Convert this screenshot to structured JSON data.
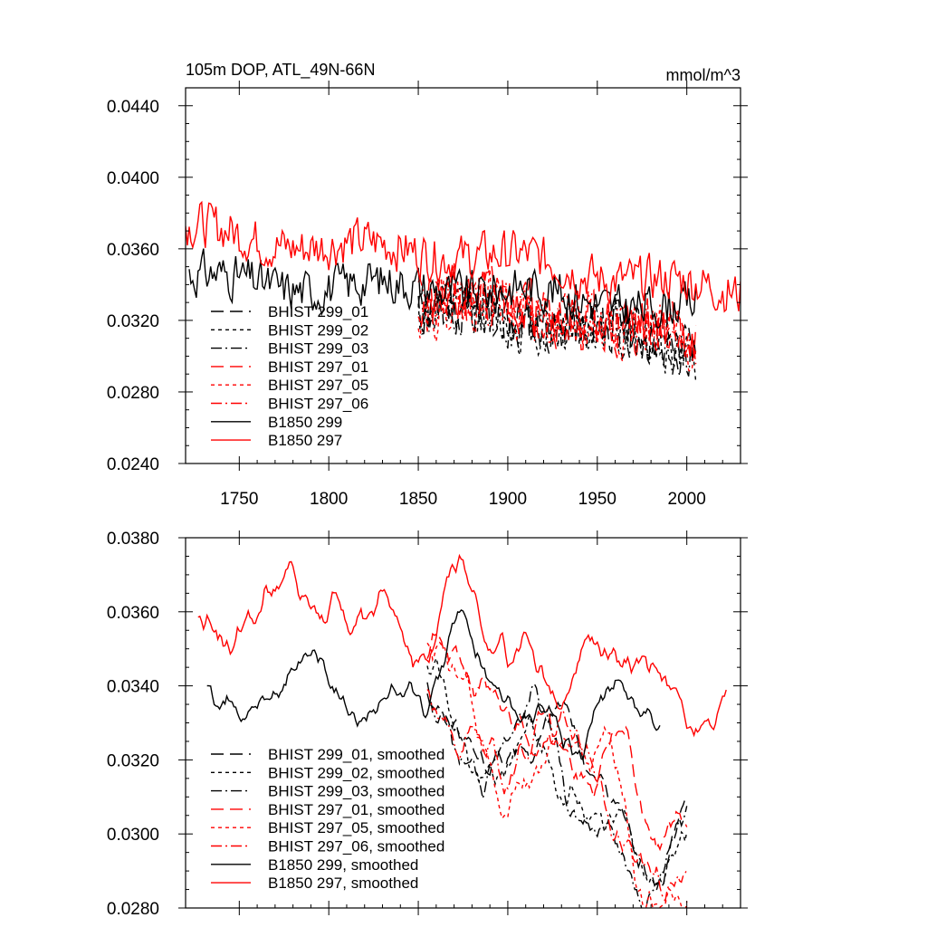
{
  "chart_data": [
    {
      "type": "line",
      "title_left": "105m DOP, ATL_49N-66N",
      "title_right": "mmol/m^3",
      "xlim": [
        1720,
        2030
      ],
      "ylim": [
        0.024,
        0.045
      ],
      "xticks": [
        1750,
        1800,
        1850,
        1900,
        1950,
        2000
      ],
      "xtick_labels": [
        "1750",
        "1800",
        "1850",
        "1900",
        "1950",
        "2000"
      ],
      "yticks": [
        0.024,
        0.028,
        0.032,
        0.036,
        0.04,
        0.044
      ],
      "ytick_labels": [
        "0.0240",
        "0.0280",
        "0.0320",
        "0.0360",
        "0.0400",
        "0.0440"
      ],
      "legend": [
        "BHIST 299_01",
        "BHIST 299_02",
        "BHIST 299_03",
        "BHIST 297_01",
        "BHIST 297_05",
        "BHIST 297_06",
        "B1850 299",
        "B1850 297"
      ],
      "series": [
        {
          "name": "BHIST 299_01",
          "color": "#000000",
          "dash": "long",
          "x_range": [
            1850,
            2005
          ],
          "mean": 0.0325,
          "slope": -1e-05,
          "noise": 0.0024,
          "seed": 11,
          "smooth": 0
        },
        {
          "name": "BHIST 299_02",
          "color": "#000000",
          "dash": "short",
          "x_range": [
            1850,
            2005
          ],
          "mean": 0.0323,
          "slope": -1.1e-05,
          "noise": 0.0024,
          "seed": 12,
          "smooth": 0
        },
        {
          "name": "BHIST 299_03",
          "color": "#000000",
          "dash": "dashdot",
          "x_range": [
            1850,
            2005
          ],
          "mean": 0.0324,
          "slope": -1e-05,
          "noise": 0.0024,
          "seed": 13,
          "smooth": 0
        },
        {
          "name": "BHIST 297_01",
          "color": "#ff0000",
          "dash": "long",
          "x_range": [
            1850,
            2005
          ],
          "mean": 0.0332,
          "slope": -1.2e-05,
          "noise": 0.0026,
          "seed": 21,
          "smooth": 0
        },
        {
          "name": "BHIST 297_05",
          "color": "#ff0000",
          "dash": "short",
          "x_range": [
            1850,
            2005
          ],
          "mean": 0.033,
          "slope": -1.3e-05,
          "noise": 0.0026,
          "seed": 22,
          "smooth": 0
        },
        {
          "name": "BHIST 297_06",
          "color": "#ff0000",
          "dash": "dashdot",
          "x_range": [
            1850,
            2005
          ],
          "mean": 0.0331,
          "slope": -1.2e-05,
          "noise": 0.0026,
          "seed": 23,
          "smooth": 0
        },
        {
          "name": "B1850 299",
          "color": "#000000",
          "dash": "solid",
          "x_range": [
            1722,
            2005
          ],
          "mean": 0.0338,
          "slope": -6e-06,
          "noise": 0.002,
          "seed": 31,
          "smooth": 0
        },
        {
          "name": "B1850 297",
          "color": "#ff0000",
          "dash": "solid",
          "x_range": [
            1720,
            2030
          ],
          "mean": 0.0358,
          "slope": -1.1e-05,
          "noise": 0.0021,
          "seed": 32,
          "smooth": 0
        }
      ]
    },
    {
      "type": "line",
      "xlim": [
        1720,
        2030
      ],
      "ylim": [
        0.028,
        0.038
      ],
      "xticks": [
        1750,
        1800,
        1850,
        1900,
        1950,
        2000
      ],
      "yticks": [
        0.028,
        0.03,
        0.032,
        0.034,
        0.036,
        0.038
      ],
      "ytick_labels": [
        "0.0280",
        "0.0300",
        "0.0320",
        "0.0340",
        "0.0360",
        "0.0380"
      ],
      "legend": [
        "BHIST 299_01, smoothed",
        "BHIST 299_02, smoothed",
        "BHIST 299_03, smoothed",
        "BHIST 297_01, smoothed",
        "BHIST 297_05, smoothed",
        "BHIST 297_06, smoothed",
        "B1850 299, smoothed",
        "B1850 297, smoothed"
      ],
      "series": [
        {
          "name": "BHIST 299_01, smoothed",
          "color": "#000000",
          "dash": "long",
          "x_range": [
            1855,
            2000
          ],
          "mean": 0.0328,
          "slope": -1.5e-05,
          "noise": 0.0024,
          "seed": 41,
          "smooth": 9
        },
        {
          "name": "BHIST 299_02, smoothed",
          "color": "#000000",
          "dash": "short",
          "x_range": [
            1855,
            2000
          ],
          "mean": 0.0326,
          "slope": -1.7e-05,
          "noise": 0.0024,
          "seed": 42,
          "smooth": 9
        },
        {
          "name": "BHIST 299_03, smoothed",
          "color": "#000000",
          "dash": "dashdot",
          "x_range": [
            1855,
            2000
          ],
          "mean": 0.0328,
          "slope": -1.6e-05,
          "noise": 0.0024,
          "seed": 43,
          "smooth": 9
        },
        {
          "name": "BHIST 297_01, smoothed",
          "color": "#ff0000",
          "dash": "long",
          "x_range": [
            1855,
            2000
          ],
          "mean": 0.0334,
          "slope": -1.8e-05,
          "noise": 0.0026,
          "seed": 51,
          "smooth": 9
        },
        {
          "name": "BHIST 297_05, smoothed",
          "color": "#ff0000",
          "dash": "short",
          "x_range": [
            1855,
            2000
          ],
          "mean": 0.033,
          "slope": -2e-05,
          "noise": 0.0026,
          "seed": 52,
          "smooth": 9
        },
        {
          "name": "BHIST 297_06, smoothed",
          "color": "#ff0000",
          "dash": "dashdot",
          "x_range": [
            1855,
            2000
          ],
          "mean": 0.0332,
          "slope": -1.8e-05,
          "noise": 0.0026,
          "seed": 53,
          "smooth": 9
        },
        {
          "name": "B1850 299, smoothed",
          "color": "#000000",
          "dash": "solid",
          "x_range": [
            1732,
            1985
          ],
          "mean": 0.0336,
          "slope": -3e-06,
          "noise": 0.0022,
          "seed": 61,
          "smooth": 9
        },
        {
          "name": "B1850 297, smoothed",
          "color": "#ff0000",
          "dash": "solid",
          "x_range": [
            1727,
            2022
          ],
          "mean": 0.0356,
          "slope": -1.2e-05,
          "noise": 0.0022,
          "seed": 62,
          "smooth": 9
        }
      ]
    }
  ]
}
